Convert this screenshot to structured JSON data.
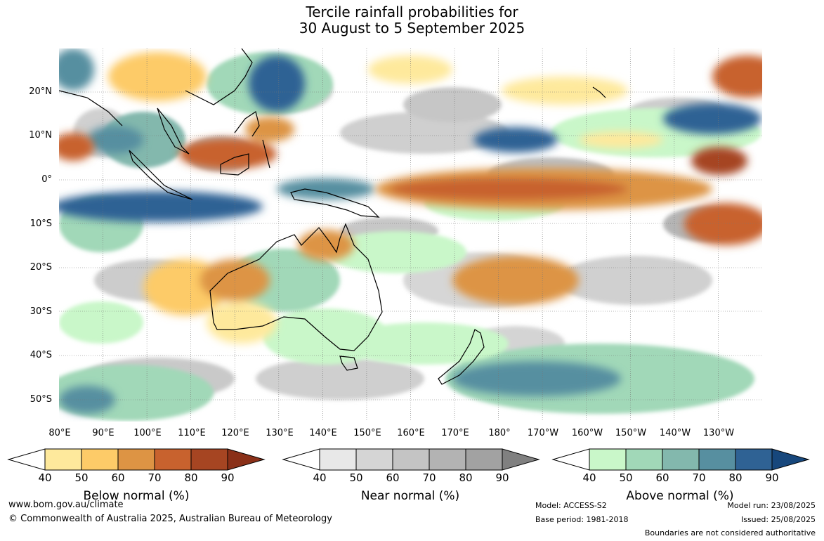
{
  "title": {
    "line1": "Tercile rainfall probabilities for",
    "line2": "30 August to 5 September 2025"
  },
  "map": {
    "lat_labels": [
      "20°N",
      "10°N",
      "0°",
      "10°S",
      "20°S",
      "30°S",
      "40°S",
      "50°S"
    ],
    "lon_labels": [
      "80°E",
      "90°E",
      "100°E",
      "110°E",
      "120°E",
      "130°E",
      "140°E",
      "150°E",
      "160°E",
      "170°E",
      "180°",
      "170°W",
      "160°W",
      "150°W",
      "140°W",
      "130°W"
    ],
    "region": "Australia, Indo-Pacific",
    "grid": true
  },
  "legends": [
    {
      "title": "Below normal (%)",
      "ticks": [
        "40",
        "50",
        "60",
        "70",
        "80",
        "90"
      ],
      "colors": [
        "#ffffff",
        "#fee99c",
        "#fdcb68",
        "#dd9444",
        "#c8622e",
        "#a64522",
        "#8a3018"
      ]
    },
    {
      "title": "Near normal (%)",
      "ticks": [
        "40",
        "50",
        "60",
        "70",
        "80",
        "90"
      ],
      "colors": [
        "#ffffff",
        "#e8e8e8",
        "#d5d5d5",
        "#c4c4c4",
        "#b3b3b3",
        "#a2a2a2",
        "#808080"
      ]
    },
    {
      "title": "Above normal (%)",
      "ticks": [
        "40",
        "50",
        "60",
        "70",
        "80",
        "90"
      ],
      "colors": [
        "#ffffff",
        "#c9f7c9",
        "#a1d8b8",
        "#83b8ad",
        "#578fa0",
        "#2f6294",
        "#17477c"
      ]
    }
  ],
  "footer": {
    "url": "www.bom.gov.au/climate",
    "copyright": "© Commonwealth of Australia 2025, Australian Bureau of Meteorology",
    "model": "Model: ACCESS-S2",
    "base_period": "Base period: 1981-2018",
    "model_run": "Model run: 23/08/2025",
    "issued": "Issued: 25/08/2025",
    "disclaimer": "Boundaries are not considered authoritative"
  }
}
